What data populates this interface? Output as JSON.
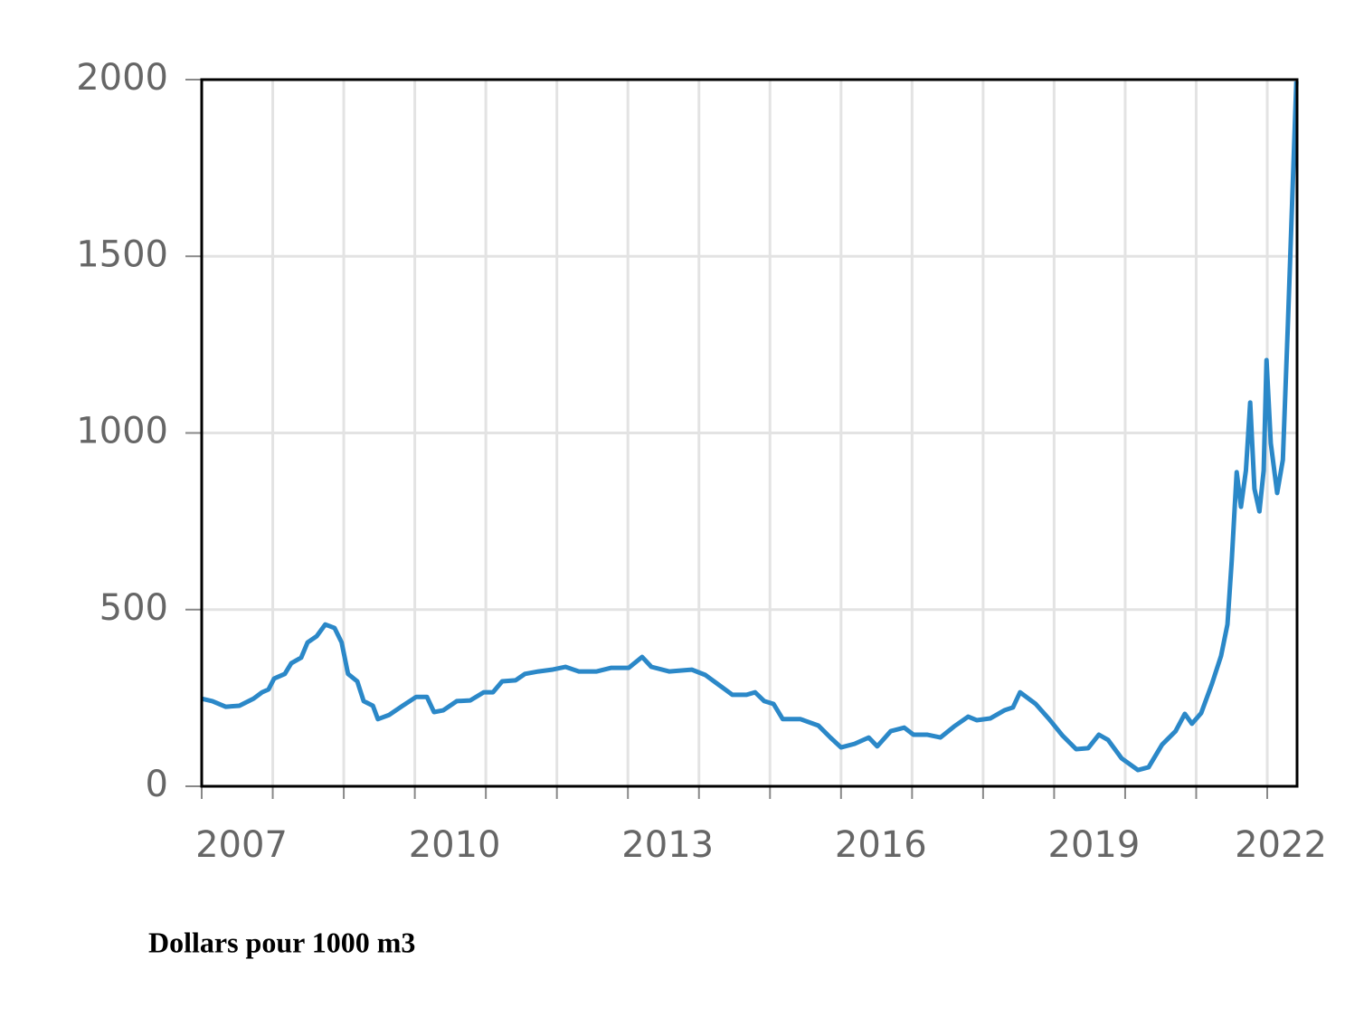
{
  "chart_data": {
    "type": "line",
    "caption": "Dollars pour 1000 m3",
    "x": [
      2007.0,
      2007.15,
      2007.34,
      2007.53,
      2007.73,
      2007.85,
      2007.94,
      2008.02,
      2008.17,
      2008.26,
      2008.4,
      2008.49,
      2008.62,
      2008.74,
      2008.87,
      2008.97,
      2009.06,
      2009.19,
      2009.28,
      2009.41,
      2009.48,
      2009.64,
      2009.83,
      2010.02,
      2010.17,
      2010.27,
      2010.4,
      2010.59,
      2010.78,
      2010.97,
      2011.1,
      2011.23,
      2011.42,
      2011.55,
      2011.74,
      2011.93,
      2012.12,
      2012.31,
      2012.56,
      2012.76,
      2013.01,
      2013.2,
      2013.33,
      2013.58,
      2013.9,
      2014.09,
      2014.28,
      2014.47,
      2014.67,
      2014.79,
      2014.92,
      2015.05,
      2015.18,
      2015.43,
      2015.68,
      2015.85,
      2016.0,
      2016.19,
      2016.39,
      2016.51,
      2016.7,
      2016.89,
      2017.02,
      2017.21,
      2017.4,
      2017.59,
      2017.79,
      2017.91,
      2018.1,
      2018.3,
      2018.42,
      2018.52,
      2018.74,
      2018.93,
      2019.12,
      2019.31,
      2019.48,
      2019.63,
      2019.76,
      2019.95,
      2020.18,
      2020.33,
      2020.52,
      2020.71,
      2020.84,
      2020.94,
      2021.07,
      2021.22,
      2021.35,
      2021.44,
      2021.5,
      2021.57,
      2021.63,
      2021.7,
      2021.76,
      2021.82,
      2021.89,
      2021.95,
      2021.99,
      2022.05,
      2022.14,
      2022.22,
      2022.29,
      2022.37,
      2022.41
    ],
    "series": [
      {
        "color": "#2b88c8",
        "values": [
          248,
          241,
          225,
          228,
          248,
          266,
          274,
          305,
          318,
          348,
          364,
          407,
          425,
          458,
          448,
          407,
          318,
          297,
          241,
          228,
          190,
          202,
          228,
          253,
          253,
          210,
          215,
          241,
          243,
          266,
          266,
          297,
          300,
          318,
          325,
          330,
          338,
          325,
          325,
          335,
          335,
          366,
          338,
          325,
          330,
          315,
          287,
          259,
          259,
          266,
          241,
          233,
          190,
          190,
          172,
          138,
          110,
          120,
          138,
          113,
          156,
          166,
          146,
          146,
          138,
          169,
          197,
          187,
          192,
          215,
          223,
          266,
          233,
          190,
          143,
          105,
          108,
          146,
          131,
          79,
          46,
          54,
          118,
          156,
          205,
          177,
          207,
          289,
          369,
          458,
          638,
          889,
          791,
          894,
          1086,
          842,
          778,
          894,
          1206,
          971,
          830,
          924,
          1303,
          1764,
          1995
        ]
      }
    ],
    "xlim": [
      2007,
      2022.42
    ],
    "xticks": [
      2007,
      2010,
      2013,
      2016,
      2019,
      2022
    ],
    "xminorticks": [
      2008,
      2009,
      2011,
      2012,
      2014,
      2015,
      2017,
      2018,
      2020,
      2021
    ],
    "ylim": [
      0,
      2000
    ],
    "yticks": [
      0,
      500,
      1000,
      1500,
      2000
    ],
    "grid": true
  }
}
